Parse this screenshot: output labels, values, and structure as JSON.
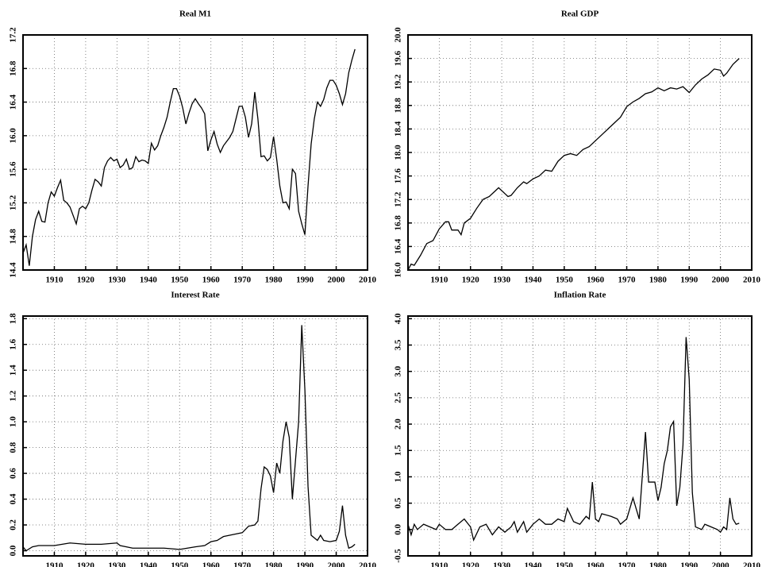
{
  "chart_data": [
    {
      "type": "line",
      "title": "Real M1",
      "color": "#000000",
      "grid": true,
      "x": [
        1900,
        1901,
        1902,
        1903,
        1904,
        1905,
        1906,
        1907,
        1908,
        1909,
        1910,
        1911,
        1912,
        1913,
        1914,
        1915,
        1916,
        1917,
        1918,
        1919,
        1920,
        1921,
        1922,
        1923,
        1924,
        1925,
        1926,
        1927,
        1928,
        1929,
        1930,
        1931,
        1932,
        1933,
        1934,
        1935,
        1936,
        1937,
        1938,
        1939,
        1940,
        1941,
        1942,
        1943,
        1944,
        1945,
        1946,
        1947,
        1948,
        1949,
        1950,
        1951,
        1952,
        1953,
        1954,
        1955,
        1956,
        1957,
        1958,
        1959,
        1960,
        1961,
        1962,
        1963,
        1964,
        1965,
        1966,
        1967,
        1968,
        1969,
        1970,
        1971,
        1972,
        1973,
        1974,
        1975,
        1976,
        1977,
        1978,
        1979,
        1980,
        1981,
        1982,
        1983,
        1984,
        1985,
        1986,
        1987,
        1988,
        1989,
        1990,
        1991,
        1992,
        1993,
        1994,
        1995,
        1996,
        1997,
        1998,
        1999,
        2000,
        2001,
        2002,
        2003,
        2004,
        2005,
        2006
      ],
      "values": [
        14.6,
        14.7,
        14.45,
        14.8,
        15.0,
        15.1,
        14.98,
        14.97,
        15.2,
        15.33,
        15.28,
        15.38,
        15.47,
        15.23,
        15.2,
        15.15,
        15.05,
        14.95,
        15.13,
        15.16,
        15.13,
        15.2,
        15.35,
        15.48,
        15.45,
        15.4,
        15.62,
        15.7,
        15.74,
        15.7,
        15.72,
        15.62,
        15.65,
        15.72,
        15.6,
        15.62,
        15.75,
        15.69,
        15.71,
        15.7,
        15.67,
        15.91,
        15.83,
        15.88,
        16.0,
        16.1,
        16.22,
        16.4,
        16.56,
        16.56,
        16.47,
        16.33,
        16.14,
        16.27,
        16.38,
        16.44,
        16.38,
        16.33,
        16.26,
        15.82,
        15.95,
        16.05,
        15.9,
        15.8,
        15.88,
        15.93,
        15.98,
        16.05,
        16.2,
        16.35,
        16.35,
        16.22,
        15.98,
        16.14,
        16.52,
        16.2,
        15.75,
        15.76,
        15.7,
        15.74,
        15.99,
        15.72,
        15.4,
        15.2,
        15.21,
        15.13,
        15.6,
        15.55,
        15.1,
        14.95,
        14.82,
        15.4,
        15.9,
        16.2,
        16.4,
        16.35,
        16.43,
        16.57,
        16.66,
        16.66,
        16.6,
        16.5,
        16.37,
        16.5,
        16.75,
        16.9,
        17.03
      ],
      "xlim": [
        1900,
        2010
      ],
      "xticks": [
        1910,
        1920,
        1930,
        1940,
        1950,
        1960,
        1970,
        1980,
        1990,
        2000,
        2010
      ],
      "ylim": [
        14.4,
        17.2
      ],
      "yticks": [
        14.4,
        14.8,
        15.2,
        15.6,
        {
          "value": 16.0,
          "label": "16.0"
        },
        16.4,
        16.8,
        17.2
      ]
    },
    {
      "type": "line",
      "title": "Real GDP",
      "color": "#000000",
      "grid": true,
      "x": [
        1900,
        1901,
        1902,
        1904,
        1906,
        1908,
        1910,
        1912,
        1913,
        1914,
        1916,
        1917,
        1918,
        1920,
        1922,
        1924,
        1926,
        1928,
        1929,
        1931,
        1932,
        1933,
        1935,
        1937,
        1938,
        1940,
        1942,
        1944,
        1946,
        1948,
        1950,
        1952,
        1954,
        1956,
        1958,
        1960,
        1962,
        1964,
        1966,
        1968,
        1970,
        1972,
        1974,
        1976,
        1978,
        1980,
        1982,
        1984,
        1986,
        1988,
        1990,
        1992,
        1994,
        1996,
        1998,
        2000,
        2001,
        2002,
        2004,
        2006
      ],
      "values": [
        16.0,
        16.1,
        16.08,
        16.25,
        16.45,
        16.5,
        16.7,
        16.82,
        16.82,
        16.68,
        16.68,
        16.6,
        16.8,
        16.88,
        17.05,
        17.2,
        17.25,
        17.35,
        17.4,
        17.3,
        17.25,
        17.27,
        17.4,
        17.5,
        17.47,
        17.55,
        17.6,
        17.7,
        17.68,
        17.85,
        17.95,
        17.98,
        17.95,
        18.05,
        18.1,
        18.2,
        18.3,
        18.4,
        18.5,
        18.6,
        18.78,
        18.86,
        18.92,
        19.0,
        19.03,
        19.1,
        19.05,
        19.1,
        19.08,
        19.12,
        19.02,
        19.15,
        19.25,
        19.32,
        19.42,
        19.4,
        19.3,
        19.35,
        19.5,
        19.6
      ],
      "xlim": [
        1900,
        2010
      ],
      "xticks": [
        1910,
        1920,
        1930,
        1940,
        1950,
        1960,
        1970,
        1980,
        1990,
        2000,
        2010
      ],
      "ylim": [
        16.0,
        20.0
      ],
      "yticks": [
        {
          "value": 16.0,
          "label": "16.0"
        },
        16.4,
        16.8,
        17.2,
        17.6,
        {
          "value": 18.0,
          "label": "18.0"
        },
        18.4,
        18.8,
        19.2,
        19.6,
        {
          "value": 20.0,
          "label": "20.0"
        }
      ]
    },
    {
      "type": "line",
      "title": "Interest Rate",
      "color": "#000000",
      "grid": true,
      "x": [
        1900,
        1901,
        1903,
        1905,
        1910,
        1915,
        1920,
        1925,
        1930,
        1931,
        1933,
        1935,
        1945,
        1950,
        1955,
        1958,
        1960,
        1962,
        1964,
        1966,
        1968,
        1970,
        1972,
        1974,
        1975,
        1976,
        1977,
        1978,
        1979,
        1980,
        1981,
        1982,
        1983,
        1984,
        1985,
        1986,
        1987,
        1988,
        1989,
        1990,
        1991,
        1992,
        1993,
        1994,
        1995,
        1996,
        1998,
        2000,
        2001,
        2002,
        2003,
        2004,
        2005,
        2006
      ],
      "values": [
        0.03,
        0.0,
        0.03,
        0.04,
        0.04,
        0.06,
        0.05,
        0.05,
        0.06,
        0.04,
        0.03,
        0.02,
        0.02,
        0.01,
        0.03,
        0.04,
        0.07,
        0.08,
        0.11,
        0.12,
        0.13,
        0.14,
        0.19,
        0.2,
        0.23,
        0.48,
        0.65,
        0.63,
        0.58,
        0.45,
        0.68,
        0.6,
        0.85,
        1.0,
        0.88,
        0.4,
        0.7,
        1.0,
        1.75,
        1.25,
        0.5,
        0.12,
        0.1,
        0.08,
        0.12,
        0.08,
        0.07,
        0.08,
        0.15,
        0.35,
        0.12,
        0.02,
        0.03,
        0.05
      ],
      "xlim": [
        1900,
        2010
      ],
      "xticks": [
        1910,
        1920,
        1930,
        1940,
        1950,
        1960,
        1970,
        1980,
        1990,
        2000,
        2010
      ],
      "ylim": [
        -0.04,
        1.82
      ],
      "yticks": [
        {
          "value": 0,
          "label": "0.0"
        },
        0.2,
        0.4,
        0.6,
        0.8,
        {
          "value": 1,
          "label": "1.0"
        },
        1.2,
        1.4,
        1.6,
        1.8
      ]
    },
    {
      "type": "line",
      "title": "Inflation Rate",
      "color": "#000000",
      "grid": true,
      "x": [
        1900,
        1901,
        1902,
        1903,
        1905,
        1907,
        1909,
        1910,
        1912,
        1914,
        1916,
        1918,
        1920,
        1921,
        1923,
        1925,
        1927,
        1929,
        1931,
        1933,
        1934,
        1935,
        1937,
        1938,
        1940,
        1942,
        1944,
        1946,
        1948,
        1950,
        1951,
        1953,
        1955,
        1957,
        1958,
        1959,
        1960,
        1961,
        1962,
        1965,
        1967,
        1968,
        1970,
        1972,
        1973,
        1974,
        1976,
        1977,
        1979,
        1980,
        1981,
        1982,
        1983,
        1984,
        1985,
        1986,
        1987,
        1988,
        1989,
        1990,
        1991,
        1992,
        1994,
        1995,
        1997,
        1999,
        2000,
        2001,
        2002,
        2003,
        2004,
        2005,
        2006
      ],
      "values": [
        0.1,
        -0.1,
        0.1,
        0.0,
        0.1,
        0.05,
        0.0,
        0.1,
        0.0,
        0.0,
        0.1,
        0.2,
        0.05,
        -0.2,
        0.05,
        0.1,
        -0.1,
        0.05,
        -0.05,
        0.05,
        0.15,
        -0.05,
        0.15,
        -0.05,
        0.1,
        0.2,
        0.1,
        0.1,
        0.2,
        0.15,
        0.4,
        0.15,
        0.1,
        0.25,
        0.2,
        0.9,
        0.2,
        0.15,
        0.3,
        0.25,
        0.2,
        0.1,
        0.2,
        0.6,
        0.4,
        0.2,
        1.85,
        0.9,
        0.9,
        0.55,
        0.8,
        1.25,
        1.5,
        1.95,
        2.05,
        0.45,
        0.8,
        1.6,
        3.65,
        2.85,
        0.7,
        0.05,
        0.0,
        0.1,
        0.05,
        0.0,
        -0.05,
        0.05,
        0.0,
        0.6,
        0.2,
        0.1,
        0.12
      ],
      "xlim": [
        1900,
        2010
      ],
      "xticks": [
        1910,
        1920,
        1930,
        1940,
        1950,
        1960,
        1970,
        1980,
        1990,
        2000,
        2010
      ],
      "ylim": [
        -0.5,
        4.05
      ],
      "yticks": [
        -0.5,
        {
          "value": 0,
          "label": "0.0"
        },
        0.5,
        {
          "value": 1,
          "label": "1.0"
        },
        1.5,
        {
          "value": 2,
          "label": "2.0"
        },
        2.5,
        {
          "value": 3,
          "label": "3.0"
        },
        3.5,
        {
          "value": 4,
          "label": "4.0"
        }
      ]
    }
  ]
}
